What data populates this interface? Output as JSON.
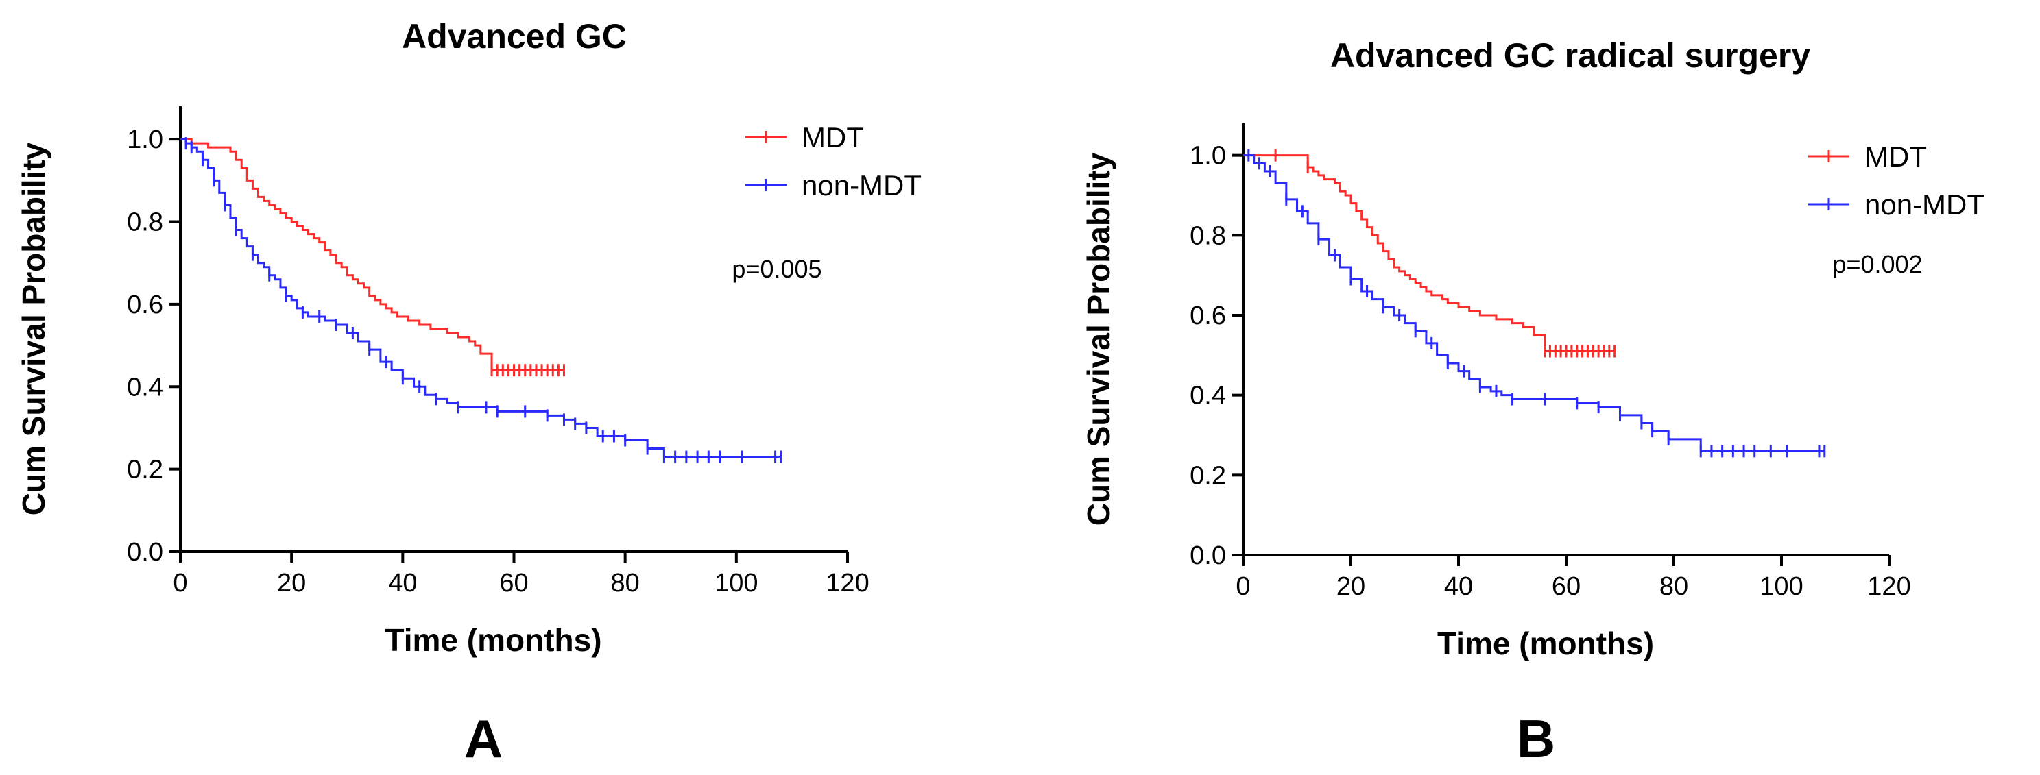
{
  "chart_data": [
    {
      "type": "line",
      "subtype": "kaplan-meier",
      "panel_label": "A",
      "title": "Advanced GC",
      "xlabel": "Time (months)",
      "ylabel": "Cum Survival Probability",
      "xlim": [
        0,
        120
      ],
      "ylim": [
        0,
        1.08
      ],
      "xticks": [
        "0",
        "20",
        "40",
        "60",
        "80",
        "100",
        "120"
      ],
      "yticks": [
        "0.0",
        "0.2",
        "0.4",
        "0.6",
        "0.8",
        "1.0"
      ],
      "annotation": "p=0.005",
      "legend_position": "top-right",
      "series": [
        {
          "name": "MDT",
          "color": "#ff2a2a",
          "x": [
            0,
            2,
            5,
            9,
            10,
            11,
            12,
            13,
            14,
            15,
            16,
            17,
            18,
            19,
            20,
            21,
            22,
            23,
            24,
            25,
            26,
            27,
            28,
            29,
            30,
            31,
            32,
            33,
            34,
            35,
            36,
            37,
            38,
            39,
            40,
            41,
            42,
            43,
            44,
            45,
            46,
            47,
            48,
            50,
            52,
            53,
            54,
            56,
            69
          ],
          "y": [
            1.0,
            0.99,
            0.98,
            0.97,
            0.95,
            0.93,
            0.9,
            0.88,
            0.86,
            0.85,
            0.84,
            0.83,
            0.82,
            0.81,
            0.8,
            0.79,
            0.78,
            0.77,
            0.76,
            0.75,
            0.73,
            0.72,
            0.7,
            0.69,
            0.67,
            0.66,
            0.65,
            0.64,
            0.62,
            0.61,
            0.6,
            0.59,
            0.58,
            0.57,
            0.57,
            0.56,
            0.56,
            0.55,
            0.55,
            0.54,
            0.54,
            0.54,
            0.53,
            0.52,
            0.51,
            0.5,
            0.48,
            0.44,
            0.44
          ],
          "censor_x": [
            56,
            57,
            58,
            59,
            60,
            61,
            62,
            63,
            64,
            65,
            66,
            67,
            68,
            69
          ]
        },
        {
          "name": "non-MDT",
          "color": "#2a2aff",
          "x": [
            0,
            1,
            2,
            3,
            4,
            5,
            6,
            7,
            8,
            9,
            10,
            11,
            12,
            13,
            14,
            15,
            16,
            17,
            18,
            19,
            20,
            21,
            22,
            23,
            24,
            26,
            28,
            30,
            32,
            34,
            36,
            38,
            40,
            42,
            44,
            46,
            48,
            50,
            55,
            57,
            62,
            66,
            69,
            71,
            73,
            75,
            80,
            84,
            87,
            108
          ],
          "y": [
            1.0,
            0.99,
            0.98,
            0.97,
            0.95,
            0.93,
            0.9,
            0.87,
            0.84,
            0.81,
            0.78,
            0.76,
            0.74,
            0.72,
            0.7,
            0.69,
            0.67,
            0.66,
            0.64,
            0.62,
            0.61,
            0.59,
            0.58,
            0.57,
            0.57,
            0.56,
            0.55,
            0.53,
            0.51,
            0.49,
            0.46,
            0.44,
            0.42,
            0.4,
            0.38,
            0.37,
            0.36,
            0.35,
            0.35,
            0.34,
            0.34,
            0.33,
            0.32,
            0.31,
            0.3,
            0.28,
            0.27,
            0.25,
            0.23,
            0.23
          ],
          "censor_x": [
            1,
            2,
            4,
            6,
            8,
            10,
            13,
            16,
            19,
            22,
            25,
            28,
            31,
            34,
            37,
            40,
            43,
            46,
            50,
            55,
            57,
            62,
            66,
            69,
            71,
            73,
            76,
            78,
            80,
            84,
            87,
            89,
            91,
            93,
            95,
            97,
            101,
            107,
            108
          ]
        }
      ]
    },
    {
      "type": "line",
      "subtype": "kaplan-meier",
      "panel_label": "B",
      "title": "Advanced GC radical surgery",
      "xlabel": "Time (months)",
      "ylabel": "Cum Survival Probability",
      "xlim": [
        0,
        120
      ],
      "ylim": [
        0,
        1.08
      ],
      "xticks": [
        "0",
        "20",
        "40",
        "60",
        "80",
        "100",
        "120"
      ],
      "yticks": [
        "0.0",
        "0.2",
        "0.4",
        "0.6",
        "0.8",
        "1.0"
      ],
      "annotation": "p=0.002",
      "legend_position": "top-right",
      "series": [
        {
          "name": "MDT",
          "color": "#ff2a2a",
          "x": [
            0,
            12,
            13,
            14,
            15,
            17,
            18,
            19,
            20,
            21,
            22,
            23,
            24,
            25,
            26,
            27,
            28,
            29,
            30,
            31,
            32,
            33,
            34,
            35,
            36,
            37,
            38,
            39,
            40,
            41,
            42,
            43,
            44,
            45,
            47,
            50,
            52,
            54,
            56,
            69
          ],
          "y": [
            1.0,
            0.97,
            0.96,
            0.95,
            0.94,
            0.93,
            0.91,
            0.9,
            0.88,
            0.86,
            0.84,
            0.82,
            0.8,
            0.78,
            0.76,
            0.74,
            0.72,
            0.71,
            0.7,
            0.69,
            0.68,
            0.67,
            0.66,
            0.65,
            0.65,
            0.64,
            0.63,
            0.63,
            0.62,
            0.62,
            0.61,
            0.61,
            0.6,
            0.6,
            0.59,
            0.58,
            0.57,
            0.55,
            0.51,
            0.51
          ],
          "censor_x": [
            6,
            12,
            56,
            57,
            58,
            59,
            60,
            61,
            62,
            63,
            64,
            65,
            66,
            67,
            68,
            69
          ]
        },
        {
          "name": "non-MDT",
          "color": "#2a2aff",
          "x": [
            0,
            2,
            4,
            6,
            8,
            10,
            12,
            14,
            16,
            18,
            20,
            22,
            24,
            26,
            28,
            30,
            32,
            34,
            36,
            38,
            40,
            42,
            44,
            46,
            48,
            50,
            56,
            62,
            66,
            70,
            74,
            76,
            79,
            85,
            108
          ],
          "y": [
            1.0,
            0.98,
            0.96,
            0.93,
            0.89,
            0.86,
            0.83,
            0.79,
            0.75,
            0.72,
            0.69,
            0.66,
            0.64,
            0.62,
            0.6,
            0.58,
            0.56,
            0.53,
            0.5,
            0.48,
            0.46,
            0.44,
            0.42,
            0.41,
            0.4,
            0.39,
            0.39,
            0.38,
            0.37,
            0.35,
            0.33,
            0.31,
            0.29,
            0.26,
            0.26
          ],
          "censor_x": [
            1,
            3,
            5,
            8,
            11,
            14,
            17,
            20,
            23,
            26,
            29,
            32,
            35,
            38,
            41,
            44,
            47,
            50,
            56,
            62,
            66,
            70,
            74,
            76,
            79,
            85,
            87,
            89,
            91,
            93,
            95,
            98,
            101,
            107,
            108
          ]
        }
      ]
    }
  ]
}
